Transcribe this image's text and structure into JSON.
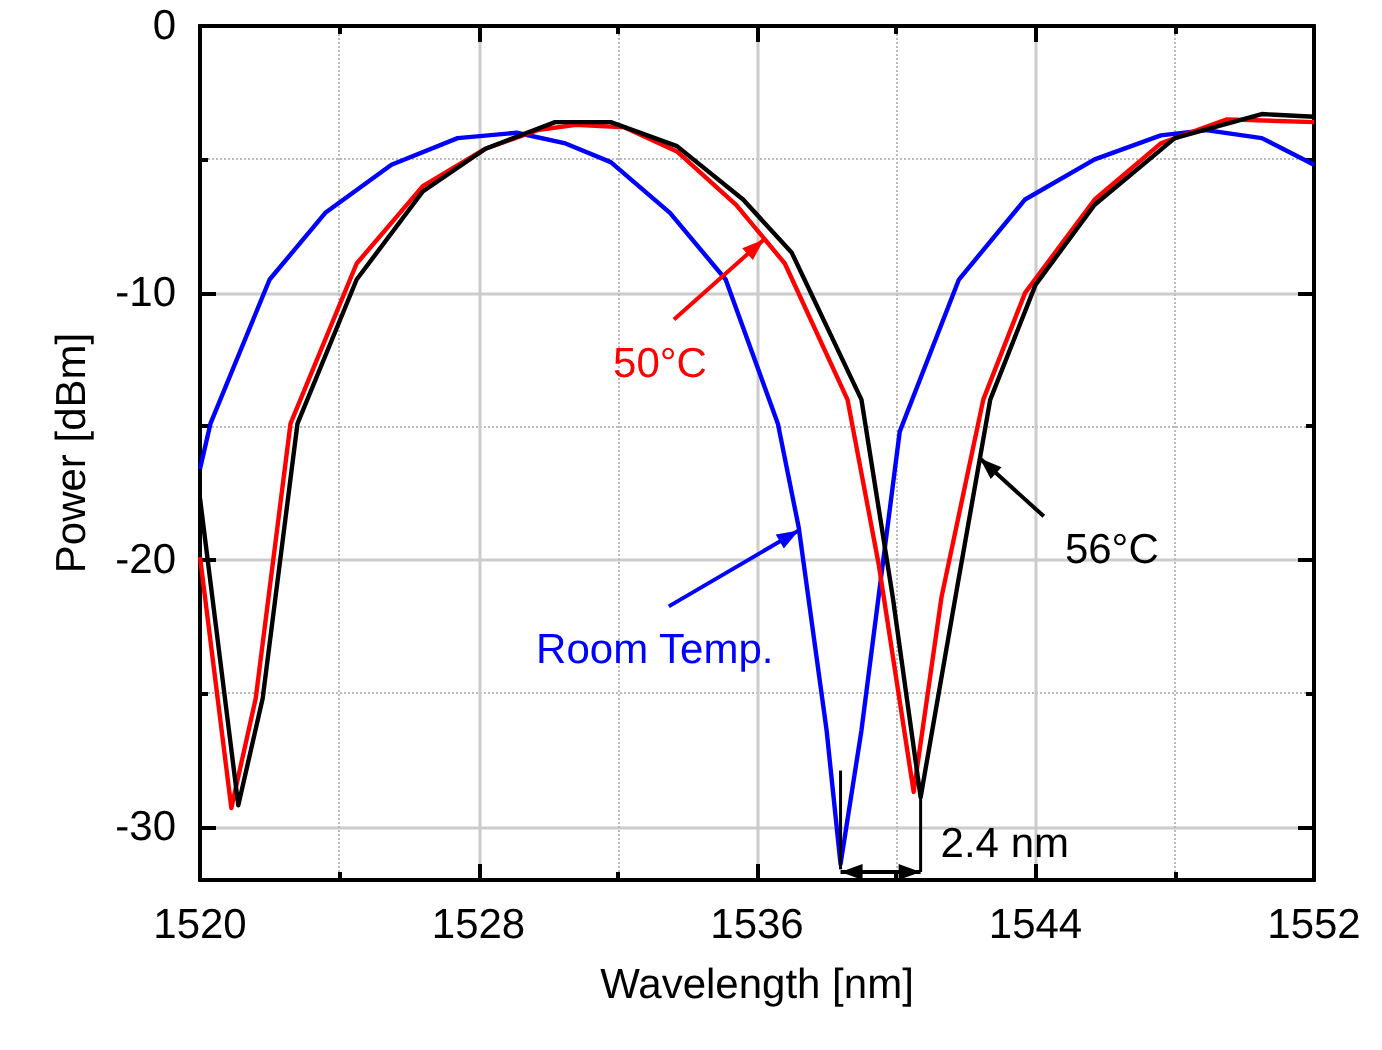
{
  "chart_data": {
    "type": "line",
    "xlabel": "Wavelength [nm]",
    "ylabel": "Power [dBm]",
    "xlim": [
      1520,
      1552
    ],
    "ylim": [
      -32,
      0
    ],
    "xticks": [
      1520,
      {
        "value": 1524,
        "label": null
      },
      1528,
      {
        "value": 1532,
        "label": null
      },
      1536,
      {
        "value": 1540,
        "label": null
      },
      1544,
      {
        "value": 1548,
        "label": null
      },
      1552
    ],
    "yticks": [
      -30,
      {
        "value": -25,
        "label": null
      },
      -20,
      {
        "value": -15,
        "label": null
      },
      -10,
      {
        "value": -5,
        "label": null
      },
      0
    ],
    "grid": true,
    "series": [
      {
        "color": "#0000ff",
        "x": [
          1520,
          1520.3,
          1522.0,
          1523.6,
          1525.5,
          1527.4,
          1529.1,
          1530.5,
          1531.8,
          1533.5,
          1535.1,
          1536.6,
          1537.2,
          1538.0,
          1538.4,
          1539.0,
          1540.1,
          1541.8,
          1543.7,
          1545.7,
          1547.6,
          1548.9,
          1550.5,
          1552
        ],
        "values": [
          -16.6,
          -14.9,
          -9.5,
          -7.0,
          -5.2,
          -4.2,
          -4.0,
          -4.4,
          -5.1,
          -7.0,
          -9.5,
          -14.9,
          -18.8,
          -26.4,
          -31.4,
          -26.4,
          -15.2,
          -9.5,
          -6.5,
          -5.0,
          -4.1,
          -3.9,
          -4.2,
          -5.2
        ]
      },
      {
        "color": "#ff0000",
        "x": [
          1520,
          1520.9,
          1521.6,
          1522.6,
          1524.5,
          1526.4,
          1528.2,
          1529.7,
          1530.8,
          1532.2,
          1533.7,
          1535.4,
          1536.8,
          1538.6,
          1539.5,
          1540.5,
          1541.3,
          1542.5,
          1543.7,
          1545.7,
          1547.6,
          1549.5,
          1552
        ],
        "values": [
          -19.9,
          -29.3,
          -25.2,
          -14.9,
          -8.9,
          -6.0,
          -4.6,
          -3.9,
          -3.7,
          -3.8,
          -4.7,
          -6.7,
          -8.9,
          -14.0,
          -20.2,
          -28.7,
          -21.4,
          -14.0,
          -10.0,
          -6.5,
          -4.4,
          -3.5,
          -3.6
        ]
      },
      {
        "color": "#000000",
        "x": [
          1520,
          1521.1,
          1521.8,
          1522.8,
          1524.5,
          1526.4,
          1528.2,
          1530.2,
          1531.8,
          1533.7,
          1535.6,
          1537.0,
          1539.0,
          1539.9,
          1540.7,
          1541.7,
          1542.7,
          1544.0,
          1545.7,
          1548.0,
          1550.5,
          1552
        ],
        "values": [
          -17.7,
          -29.2,
          -25.2,
          -14.9,
          -9.5,
          -6.2,
          -4.6,
          -3.6,
          -3.6,
          -4.5,
          -6.5,
          -8.5,
          -14.0,
          -21.4,
          -28.9,
          -21.4,
          -14.0,
          -9.7,
          -6.7,
          -4.2,
          -3.3,
          -3.4
        ]
      }
    ],
    "annotations": [
      {
        "text": "50°C",
        "x": 1536.2,
        "y": -8.0
      },
      {
        "text": "Room Temp.",
        "x": 1537.2,
        "y": -18.9
      },
      {
        "text": "56°C",
        "x": 1542.4,
        "y": -16.2
      },
      "2.4 nm"
    ]
  }
}
